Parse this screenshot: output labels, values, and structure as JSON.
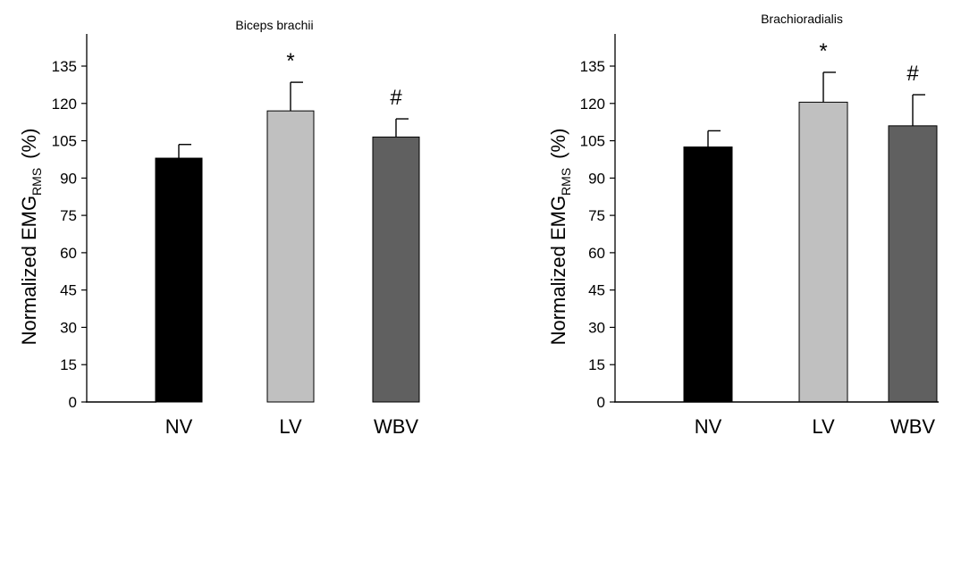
{
  "chart_data": [
    {
      "type": "bar",
      "title": "Biceps brachii",
      "ylabel": "Normalized EMG",
      "ylabel_sub": "RMS",
      "ylabel_unit": "(%)",
      "categories": [
        "NV",
        "LV",
        "WBV"
      ],
      "values": [
        98,
        117,
        106.5
      ],
      "errors": [
        5.5,
        11.5,
        7.3
      ],
      "colors": [
        "#000000",
        "#c0c0c0",
        "#606060"
      ],
      "annotations": [
        "",
        "*",
        "#"
      ],
      "ylim": [
        0,
        145
      ],
      "yticks": [
        0,
        15,
        30,
        45,
        60,
        75,
        90,
        105,
        120,
        135
      ]
    },
    {
      "type": "bar",
      "title": "Brachioradialis",
      "ylabel": "Normalized EMG",
      "ylabel_sub": "RMS",
      "ylabel_unit": "(%)",
      "categories": [
        "NV",
        "LV",
        "WBV"
      ],
      "values": [
        102.5,
        120.5,
        111
      ],
      "errors": [
        6.5,
        12,
        12.5
      ],
      "colors": [
        "#000000",
        "#c0c0c0",
        "#606060"
      ],
      "annotations": [
        "",
        "*",
        "#"
      ],
      "ylim": [
        0,
        145
      ],
      "yticks": [
        0,
        15,
        30,
        45,
        60,
        75,
        90,
        105,
        120,
        135
      ]
    }
  ]
}
